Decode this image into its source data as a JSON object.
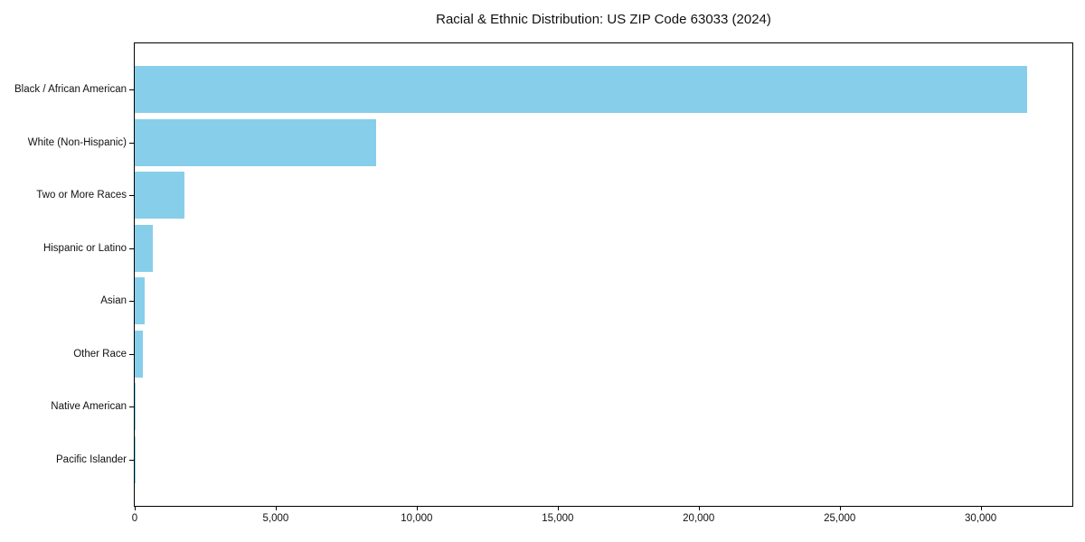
{
  "chart_data": {
    "type": "bar",
    "orientation": "horizontal",
    "title": "Racial & Ethnic Distribution: US ZIP Code 63033 (2024)",
    "categories": [
      "Black / African American",
      "White (Non-Hispanic)",
      "Two or More Races",
      "Hispanic or Latino",
      "Asian",
      "Other Race",
      "Native American",
      "Pacific Islander"
    ],
    "values": [
      31650,
      8550,
      1770,
      640,
      350,
      285,
      40,
      15
    ],
    "xlabel": "",
    "ylabel": "",
    "xlim": [
      0,
      33250
    ],
    "x_ticks": [
      0,
      5000,
      10000,
      15000,
      20000,
      25000,
      30000
    ],
    "x_tick_labels": [
      "0",
      "5,000",
      "10,000",
      "15,000",
      "20,000",
      "25,000",
      "30,000"
    ],
    "bar_color": "#87CEEB",
    "grid": false,
    "legend": false
  }
}
